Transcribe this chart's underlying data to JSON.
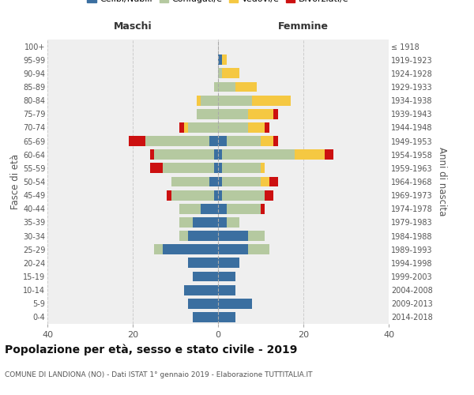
{
  "age_groups": [
    "0-4",
    "5-9",
    "10-14",
    "15-19",
    "20-24",
    "25-29",
    "30-34",
    "35-39",
    "40-44",
    "45-49",
    "50-54",
    "55-59",
    "60-64",
    "65-69",
    "70-74",
    "75-79",
    "80-84",
    "85-89",
    "90-94",
    "95-99",
    "100+"
  ],
  "birth_years": [
    "2014-2018",
    "2009-2013",
    "2004-2008",
    "1999-2003",
    "1994-1998",
    "1989-1993",
    "1984-1988",
    "1979-1983",
    "1974-1978",
    "1969-1973",
    "1964-1968",
    "1959-1963",
    "1954-1958",
    "1949-1953",
    "1944-1948",
    "1939-1943",
    "1934-1938",
    "1929-1933",
    "1924-1928",
    "1919-1923",
    "≤ 1918"
  ],
  "males": {
    "celibi": [
      6,
      7,
      8,
      6,
      7,
      13,
      7,
      6,
      4,
      1,
      2,
      1,
      1,
      2,
      0,
      0,
      0,
      0,
      0,
      0,
      0
    ],
    "coniugati": [
      0,
      0,
      0,
      0,
      0,
      2,
      2,
      3,
      5,
      10,
      9,
      12,
      14,
      15,
      7,
      5,
      4,
      1,
      0,
      0,
      0
    ],
    "vedovi": [
      0,
      0,
      0,
      0,
      0,
      0,
      0,
      0,
      0,
      0,
      0,
      0,
      0,
      0,
      1,
      0,
      1,
      0,
      0,
      0,
      0
    ],
    "divorziati": [
      0,
      0,
      0,
      0,
      0,
      0,
      0,
      0,
      0,
      1,
      0,
      3,
      1,
      4,
      1,
      0,
      0,
      0,
      0,
      0,
      0
    ]
  },
  "females": {
    "nubili": [
      4,
      8,
      4,
      4,
      5,
      7,
      7,
      2,
      2,
      1,
      1,
      1,
      1,
      2,
      0,
      0,
      0,
      0,
      0,
      1,
      0
    ],
    "coniugate": [
      0,
      0,
      0,
      0,
      0,
      5,
      4,
      3,
      8,
      10,
      9,
      9,
      17,
      8,
      7,
      7,
      8,
      4,
      1,
      0,
      0
    ],
    "vedove": [
      0,
      0,
      0,
      0,
      0,
      0,
      0,
      0,
      0,
      0,
      2,
      1,
      7,
      3,
      4,
      6,
      9,
      5,
      4,
      1,
      0
    ],
    "divorziate": [
      0,
      0,
      0,
      0,
      0,
      0,
      0,
      0,
      1,
      2,
      2,
      0,
      2,
      1,
      1,
      1,
      0,
      0,
      0,
      0,
      0
    ]
  },
  "colors": {
    "celibi": "#3b6fa0",
    "coniugati": "#b5c9a0",
    "vedovi": "#f5c842",
    "divorziati": "#cc1010"
  },
  "title": "Popolazione per età, sesso e stato civile - 2019",
  "subtitle": "COMUNE DI LANDIONA (NO) - Dati ISTAT 1° gennaio 2019 - Elaborazione TUTTITALIA.IT",
  "xlabel_left": "Maschi",
  "xlabel_right": "Femmine",
  "ylabel_left": "Fasce di età",
  "ylabel_right": "Anni di nascita",
  "xlim": 40,
  "bg_color": "#efefef"
}
